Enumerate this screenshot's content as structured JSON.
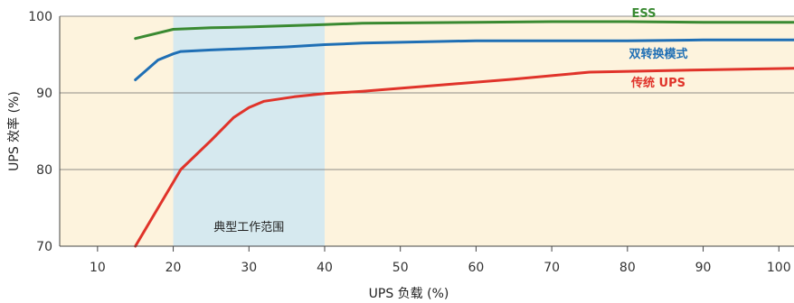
{
  "chart_data": {
    "type": "line",
    "title": "",
    "xlabel": "UPS 负载 (%)",
    "ylabel": "UPS 效率 (%)",
    "xlim": [
      5,
      102
    ],
    "ylim": [
      70,
      100
    ],
    "xticks": [
      10,
      20,
      30,
      40,
      50,
      60,
      70,
      80,
      90,
      100
    ],
    "yticks": [
      70,
      80,
      90,
      100
    ],
    "grid": "horizontal",
    "shaded_range": {
      "label": "典型工作范围",
      "x": [
        20,
        40
      ]
    },
    "background_color": "#fdf3dd",
    "shaded_color": "#d6e9ef",
    "series": [
      {
        "name": "ESS",
        "color": "#3a8a32",
        "x": [
          15,
          20,
          25,
          30,
          40,
          45,
          60,
          70,
          80,
          90,
          102
        ],
        "y": [
          97.1,
          98.3,
          98.5,
          98.6,
          98.9,
          99.1,
          99.2,
          99.3,
          99.3,
          99.2,
          99.2
        ]
      },
      {
        "name": "双转换模式",
        "color": "#1f6fb5",
        "x": [
          15,
          18,
          20,
          21,
          23,
          25,
          30,
          35,
          40,
          45,
          50,
          60,
          70,
          80,
          90,
          102
        ],
        "y": [
          91.7,
          94.3,
          95.1,
          95.4,
          95.5,
          95.6,
          95.8,
          96.0,
          96.3,
          96.5,
          96.6,
          96.8,
          96.8,
          96.8,
          96.9,
          96.9
        ]
      },
      {
        "name": "传统 UPS",
        "color": "#e0332a",
        "x": [
          15,
          21,
          25,
          28,
          30,
          32,
          36,
          40,
          45,
          55,
          65,
          75,
          90,
          102
        ],
        "y": [
          70.0,
          80.0,
          83.8,
          86.8,
          88.1,
          88.9,
          89.5,
          89.9,
          90.2,
          91.0,
          91.8,
          92.7,
          93.0,
          93.2
        ]
      }
    ]
  }
}
